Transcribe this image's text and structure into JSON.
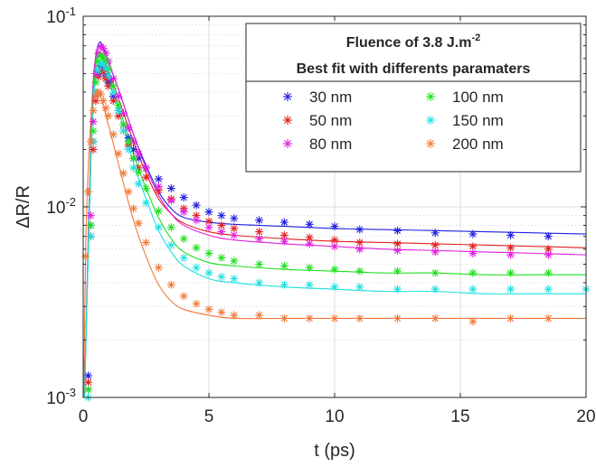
{
  "chart_data": {
    "type": "scatter",
    "title": "",
    "xlabel": "t (ps)",
    "ylabel": "ΔR/R",
    "xlim": [
      0,
      20
    ],
    "ylim": [
      0.001,
      0.1
    ],
    "yscale": "log",
    "grid": true,
    "x_ticks": [
      0,
      5,
      10,
      15,
      20
    ],
    "x_tick_labels": [
      "0",
      "5",
      "10",
      "15",
      "20"
    ],
    "y_ticks": [
      0.001,
      0.01,
      0.1
    ],
    "y_tick_labels": [
      {
        "base": "10",
        "exp": "-3"
      },
      {
        "base": "10",
        "exp": "-2"
      },
      {
        "base": "10",
        "exp": "-1"
      }
    ],
    "legend": {
      "placement": "top-right",
      "title_line1": "Fluence of 3.8 J.m",
      "title_line1_sup": "-2",
      "title_line2": "Best fit with differents paramaters"
    },
    "series": [
      {
        "name": "30 nm",
        "color": "#1f1fe0",
        "x": [
          0.2,
          0.3,
          0.4,
          0.5,
          0.6,
          0.7,
          0.8,
          0.9,
          1.0,
          1.2,
          1.4,
          1.6,
          1.8,
          2.0,
          2.2,
          2.5,
          3.0,
          3.5,
          4.0,
          4.5,
          5.0,
          5.5,
          6.0,
          7.0,
          8.0,
          9.0,
          10.0,
          11.0,
          12.5,
          14.0,
          15.5,
          17.0,
          18.5
        ],
        "y": [
          0.0013,
          0.008,
          0.022,
          0.038,
          0.05,
          0.055,
          0.053,
          0.049,
          0.045,
          0.038,
          0.032,
          0.027,
          0.023,
          0.02,
          0.018,
          0.016,
          0.014,
          0.0125,
          0.0112,
          0.0102,
          0.0094,
          0.009,
          0.0087,
          0.0085,
          0.0083,
          0.0081,
          0.0079,
          0.0076,
          0.0075,
          0.0073,
          0.0072,
          0.0071,
          0.007
        ],
        "fit_x": [
          0.05,
          0.2,
          0.35,
          0.5,
          0.65,
          0.8,
          1.0,
          1.5,
          2.0,
          2.5,
          3.0,
          3.5,
          4.0,
          5.0,
          6.0,
          8.0,
          10.0,
          12.0,
          14.0,
          16.0,
          18.0,
          20.0
        ],
        "fit_y": [
          0.001,
          0.006,
          0.03,
          0.06,
          0.073,
          0.068,
          0.058,
          0.038,
          0.024,
          0.0165,
          0.012,
          0.0098,
          0.0088,
          0.0083,
          0.0081,
          0.0079,
          0.0077,
          0.0076,
          0.0075,
          0.0074,
          0.0073,
          0.0072
        ]
      },
      {
        "name": "50 nm",
        "color": "#e01f1f",
        "x": [
          0.2,
          0.3,
          0.4,
          0.5,
          0.6,
          0.7,
          0.8,
          0.9,
          1.0,
          1.2,
          1.4,
          1.6,
          1.8,
          2.0,
          2.2,
          2.5,
          3.0,
          3.5,
          4.0,
          4.5,
          5.0,
          5.5,
          6.0,
          7.0,
          8.0,
          9.0,
          10.0,
          11.0,
          12.5,
          14.0,
          15.5,
          17.0,
          18.5
        ],
        "y": [
          0.0012,
          0.007,
          0.02,
          0.036,
          0.048,
          0.052,
          0.051,
          0.047,
          0.043,
          0.036,
          0.03,
          0.025,
          0.021,
          0.018,
          0.016,
          0.0143,
          0.0122,
          0.011,
          0.0098,
          0.009,
          0.0084,
          0.008,
          0.0077,
          0.0074,
          0.0071,
          0.0069,
          0.0067,
          0.0065,
          0.0064,
          0.0063,
          0.0062,
          0.0061,
          0.006
        ],
        "fit_x": [
          0.05,
          0.2,
          0.35,
          0.5,
          0.65,
          0.8,
          1.0,
          1.5,
          2.0,
          2.5,
          3.0,
          3.5,
          4.0,
          5.0,
          6.0,
          8.0,
          10.0,
          12.0,
          14.0,
          16.0,
          18.0,
          20.0
        ],
        "fit_y": [
          0.001,
          0.006,
          0.028,
          0.055,
          0.064,
          0.06,
          0.052,
          0.034,
          0.022,
          0.015,
          0.011,
          0.0092,
          0.0082,
          0.0074,
          0.0071,
          0.0068,
          0.0066,
          0.0065,
          0.0064,
          0.0063,
          0.0062,
          0.0061
        ]
      },
      {
        "name": "80 nm",
        "color": "#e01fe0",
        "x": [
          0.2,
          0.3,
          0.4,
          0.5,
          0.6,
          0.7,
          0.8,
          0.9,
          1.0,
          1.2,
          1.4,
          1.6,
          1.8,
          2.0,
          2.2,
          2.5,
          3.0,
          3.5,
          4.0,
          4.5,
          5.0,
          5.5,
          6.0,
          7.0,
          8.0,
          9.0,
          10.0,
          11.0,
          12.5,
          14.0,
          15.5,
          17.0,
          18.5
        ],
        "y": [
          0.0011,
          0.009,
          0.028,
          0.05,
          0.064,
          0.069,
          0.068,
          0.064,
          0.058,
          0.047,
          0.038,
          0.031,
          0.026,
          0.022,
          0.019,
          0.016,
          0.0128,
          0.0108,
          0.0094,
          0.0085,
          0.0078,
          0.0074,
          0.0071,
          0.0068,
          0.0066,
          0.0064,
          0.0062,
          0.006,
          0.0059,
          0.0058,
          0.0057,
          0.0056,
          0.0056
        ],
        "fit_x": [
          0.05,
          0.2,
          0.35,
          0.5,
          0.65,
          0.8,
          1.0,
          1.5,
          2.0,
          2.5,
          3.0,
          3.5,
          4.0,
          5.0,
          6.0,
          8.0,
          10.0,
          12.0,
          14.0,
          16.0,
          18.0,
          20.0
        ],
        "fit_y": [
          0.001,
          0.007,
          0.035,
          0.062,
          0.07,
          0.066,
          0.058,
          0.038,
          0.024,
          0.016,
          0.0115,
          0.0092,
          0.008,
          0.0071,
          0.0067,
          0.0064,
          0.0062,
          0.006,
          0.0059,
          0.0058,
          0.0057,
          0.0056
        ]
      },
      {
        "name": "100 nm",
        "color": "#1fe01f",
        "x": [
          0.2,
          0.3,
          0.4,
          0.5,
          0.6,
          0.7,
          0.8,
          0.9,
          1.0,
          1.2,
          1.4,
          1.6,
          1.8,
          2.0,
          2.2,
          2.5,
          3.0,
          3.5,
          4.0,
          4.5,
          5.0,
          5.5,
          6.0,
          7.0,
          8.0,
          9.0,
          10.0,
          11.0,
          12.5,
          14.0,
          15.5,
          17.0,
          18.5
        ],
        "y": [
          0.0011,
          0.008,
          0.025,
          0.045,
          0.058,
          0.062,
          0.061,
          0.058,
          0.053,
          0.043,
          0.034,
          0.027,
          0.022,
          0.018,
          0.0152,
          0.0125,
          0.0095,
          0.0078,
          0.0068,
          0.0061,
          0.0057,
          0.0054,
          0.0052,
          0.005,
          0.0049,
          0.0048,
          0.0047,
          0.0046,
          0.0046,
          0.0045,
          0.0045,
          0.0045,
          0.0045
        ],
        "fit_x": [
          0.05,
          0.2,
          0.35,
          0.5,
          0.65,
          0.8,
          1.0,
          1.5,
          2.0,
          2.5,
          3.0,
          3.5,
          4.0,
          5.0,
          6.0,
          8.0,
          10.0,
          12.0,
          14.0,
          16.0,
          18.0,
          20.0
        ],
        "fit_y": [
          0.001,
          0.006,
          0.03,
          0.056,
          0.062,
          0.058,
          0.05,
          0.031,
          0.019,
          0.0125,
          0.0088,
          0.0068,
          0.0058,
          0.0051,
          0.0049,
          0.0047,
          0.0046,
          0.0045,
          0.0045,
          0.0044,
          0.0044,
          0.0044
        ]
      },
      {
        "name": "150 nm",
        "color": "#1fe0e0",
        "x": [
          0.2,
          0.3,
          0.4,
          0.5,
          0.6,
          0.7,
          0.8,
          0.9,
          1.0,
          1.2,
          1.4,
          1.6,
          1.8,
          2.0,
          2.2,
          2.5,
          3.0,
          3.5,
          4.0,
          4.5,
          5.0,
          5.5,
          6.0,
          7.0,
          8.0,
          9.0,
          10.0,
          11.0,
          12.5,
          14.0,
          15.5,
          17.0,
          18.5,
          20.0
        ],
        "y": [
          0.001,
          0.007,
          0.022,
          0.04,
          0.052,
          0.056,
          0.056,
          0.053,
          0.049,
          0.04,
          0.032,
          0.025,
          0.02,
          0.016,
          0.0132,
          0.0105,
          0.0078,
          0.0063,
          0.0054,
          0.0048,
          0.0045,
          0.0043,
          0.0042,
          0.004,
          0.0039,
          0.0039,
          0.0038,
          0.0038,
          0.0037,
          0.0037,
          0.0037,
          0.0037,
          0.0037,
          0.0037
        ],
        "fit_x": [
          0.05,
          0.2,
          0.35,
          0.5,
          0.65,
          0.8,
          1.0,
          1.5,
          2.0,
          2.5,
          3.0,
          3.5,
          4.0,
          5.0,
          6.0,
          8.0,
          10.0,
          12.0,
          14.0,
          16.0,
          18.0,
          20.0
        ],
        "fit_y": [
          0.001,
          0.0055,
          0.026,
          0.05,
          0.057,
          0.054,
          0.047,
          0.029,
          0.017,
          0.011,
          0.0075,
          0.0058,
          0.0049,
          0.0042,
          0.004,
          0.0038,
          0.0037,
          0.0036,
          0.0036,
          0.0035,
          0.0035,
          0.0035
        ]
      },
      {
        "name": "200 nm",
        "color": "#f27a3a",
        "x": [
          0.1,
          0.2,
          0.3,
          0.4,
          0.5,
          0.6,
          0.7,
          0.8,
          0.9,
          1.0,
          1.2,
          1.4,
          1.6,
          1.8,
          2.0,
          2.2,
          2.5,
          3.0,
          3.5,
          4.0,
          4.5,
          5.0,
          5.5,
          6.0,
          7.0,
          8.0,
          9.0,
          10.0,
          11.0,
          12.5,
          14.0,
          15.5,
          17.0,
          18.5
        ],
        "y": [
          0.0055,
          0.012,
          0.022,
          0.032,
          0.038,
          0.04,
          0.039,
          0.036,
          0.033,
          0.03,
          0.024,
          0.019,
          0.015,
          0.012,
          0.0098,
          0.0082,
          0.0065,
          0.0048,
          0.0039,
          0.0034,
          0.0031,
          0.0029,
          0.0028,
          0.0027,
          0.0027,
          0.0026,
          0.0026,
          0.0026,
          0.0026,
          0.0026,
          0.0026,
          0.0025,
          0.0026,
          0.0026
        ],
        "fit_x": [
          0.02,
          0.1,
          0.2,
          0.35,
          0.5,
          0.65,
          0.8,
          1.0,
          1.5,
          2.0,
          2.5,
          3.0,
          3.5,
          4.0,
          5.0,
          6.0,
          8.0,
          10.0,
          12.0,
          14.0,
          16.0,
          18.0,
          20.0
        ],
        "fit_y": [
          0.001,
          0.006,
          0.016,
          0.034,
          0.041,
          0.039,
          0.034,
          0.027,
          0.015,
          0.0085,
          0.0055,
          0.0039,
          0.0032,
          0.0029,
          0.0027,
          0.0026,
          0.0026,
          0.0026,
          0.0026,
          0.0026,
          0.0026,
          0.0026,
          0.0026
        ]
      }
    ]
  }
}
